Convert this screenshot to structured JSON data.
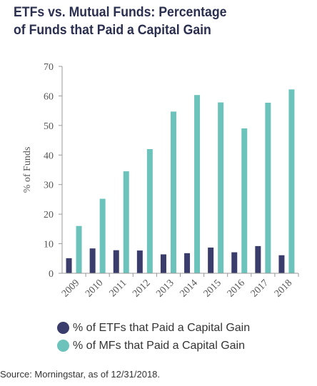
{
  "title_line1": "ETFs vs. Mutual Funds: Percentage",
  "title_line2": "of Funds that Paid a Capital Gain",
  "source": "Source: Morningstar, as of 12/31/2018.",
  "chart_data": {
    "type": "bar",
    "categories": [
      "2009",
      "2010",
      "2011",
      "2012",
      "2013",
      "2014",
      "2015",
      "2016",
      "2017",
      "2018"
    ],
    "series": [
      {
        "name": "% of ETFs that Paid a Capital Gain",
        "color": "#3a3c6b",
        "values": [
          5.1,
          8.4,
          7.8,
          7.7,
          6.4,
          6.8,
          8.7,
          7.1,
          9.2,
          6.1
        ]
      },
      {
        "name": "% of MFs that Paid a Capital Gain",
        "color": "#6cc3bc",
        "values": [
          16.0,
          25.2,
          34.5,
          42.0,
          54.7,
          60.3,
          57.8,
          49.0,
          57.7,
          62.2
        ]
      }
    ],
    "ylabel": "% of Funds",
    "ylim": [
      0,
      70
    ],
    "yticks": [
      0,
      10,
      20,
      30,
      40,
      50,
      60,
      70
    ],
    "grid": false,
    "legend_position": "bottom"
  }
}
